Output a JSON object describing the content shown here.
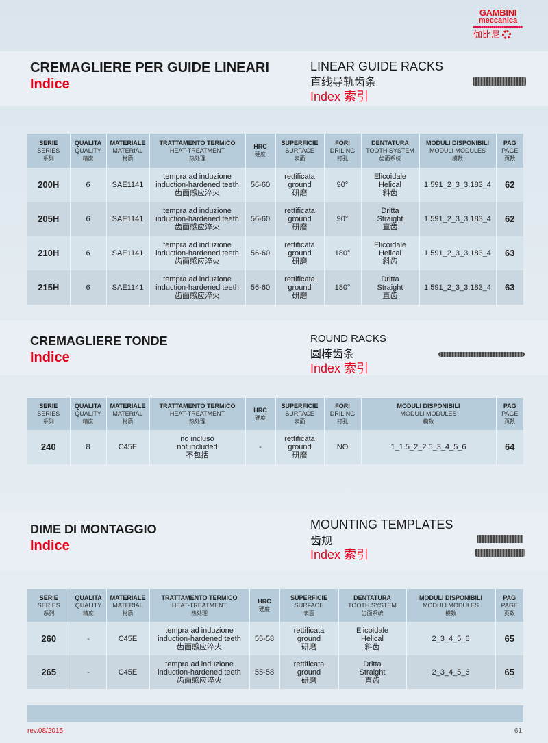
{
  "logo": {
    "line1": "GAMBINI",
    "line2": "meccanica",
    "cn": "伽比尼"
  },
  "sections": [
    {
      "title_it": "CREMAGLIERE PER GUIDE LINEARI",
      "indice": "Indice",
      "title_en": "LINEAR GUIDE RACKS",
      "title_cn": "直线导轨齿条",
      "index": "Index 索引",
      "headers": [
        [
          "SERIE",
          "SERIES",
          "系列"
        ],
        [
          "QUALITA",
          "QUALITY",
          "精度"
        ],
        [
          "MATERIALE",
          "MATERIAL",
          "材质"
        ],
        [
          "TRATTAMENTO TERMICO",
          "HEAT-TREATMENT",
          "热处理"
        ],
        [
          "HRC",
          "硬度"
        ],
        [
          "SUPERFICIE",
          "SURFACE",
          "表面"
        ],
        [
          "FORI",
          "DRILING",
          "打孔"
        ],
        [
          "DENTATURA",
          "TOOTH SYSTEM",
          "齿面系统"
        ],
        [
          "MODULI DISPONIBILI",
          "MODULI MODULES",
          "模数"
        ],
        [
          "PAG",
          "PAGE",
          "页数"
        ]
      ],
      "rows": [
        [
          [
            "200H"
          ],
          [
            "6"
          ],
          [
            "SAE1141"
          ],
          [
            "tempra ad induzione",
            "induction-hardened teeth",
            "齿面感应淬火"
          ],
          [
            "56-60"
          ],
          [
            "rettificata",
            "ground",
            "研磨"
          ],
          [
            "90°"
          ],
          [
            "Elicoidale",
            "Helical",
            "斜齿"
          ],
          [
            "1.591_2_3_3.183_4"
          ],
          [
            "62"
          ]
        ],
        [
          [
            "205H"
          ],
          [
            "6"
          ],
          [
            "SAE1141"
          ],
          [
            "tempra ad induzione",
            "induction-hardened teeth",
            "齿面感应淬火"
          ],
          [
            "56-60"
          ],
          [
            "rettificata",
            "ground",
            "研磨"
          ],
          [
            "90°"
          ],
          [
            "Dritta",
            "Straight",
            "直齿"
          ],
          [
            "1.591_2_3_3.183_4"
          ],
          [
            "62"
          ]
        ],
        [
          [
            "210H"
          ],
          [
            "6"
          ],
          [
            "SAE1141"
          ],
          [
            "tempra ad induzione",
            "induction-hardened teeth",
            "齿面感应淬火"
          ],
          [
            "56-60"
          ],
          [
            "rettificata",
            "ground",
            "研磨"
          ],
          [
            "180°"
          ],
          [
            "Elicoidale",
            "Helical",
            "斜齿"
          ],
          [
            "1.591_2_3_3.183_4"
          ],
          [
            "63"
          ]
        ],
        [
          [
            "215H"
          ],
          [
            "6"
          ],
          [
            "SAE1141"
          ],
          [
            "tempra ad induzione",
            "induction-hardened teeth",
            "齿面感应淬火"
          ],
          [
            "56-60"
          ],
          [
            "rettificata",
            "ground",
            "研磨"
          ],
          [
            "180°"
          ],
          [
            "Dritta",
            "Straight",
            "直齿"
          ],
          [
            "1.591_2_3_3.183_4"
          ],
          [
            "63"
          ]
        ]
      ]
    },
    {
      "title_it": "CREMAGLIERE TONDE",
      "indice": "Indice",
      "title_en": "ROUND RACKS",
      "title_cn": "圆棒齿条",
      "index": "Index 索引",
      "headers": [
        [
          "SERIE",
          "SERIES",
          "系列"
        ],
        [
          "QUALITA",
          "QUALITY",
          "精度"
        ],
        [
          "MATERIALE",
          "MATERIAL",
          "材质"
        ],
        [
          "TRATTAMENTO TERMICO",
          "HEAT-TREATMENT",
          "热处理"
        ],
        [
          "HRC",
          "硬度"
        ],
        [
          "SUPERFICIE",
          "SURFACE",
          "表面"
        ],
        [
          "FORI",
          "DRILING",
          "打孔"
        ],
        [
          "MODULI DISPONIBILI",
          "MODULI MODULES",
          "模数"
        ],
        [
          "PAG",
          "PAGE",
          "页数"
        ]
      ],
      "rows": [
        [
          [
            "240"
          ],
          [
            "8"
          ],
          [
            "C45E"
          ],
          [
            "no incluso",
            "not included",
            "不包括"
          ],
          [
            "-"
          ],
          [
            "rettificata",
            "ground",
            "研磨"
          ],
          [
            "NO"
          ],
          [
            "1_1.5_2_2.5_3_4_5_6"
          ],
          [
            "64"
          ]
        ]
      ]
    },
    {
      "title_it": "DIME DI MONTAGGIO",
      "indice": "Indice",
      "title_en": "MOUNTING TEMPLATES",
      "title_cn": "齿规",
      "index": "Index 索引",
      "headers": [
        [
          "SERIE",
          "SERIES",
          "系列"
        ],
        [
          "QUALITA",
          "QUALITY",
          "精度"
        ],
        [
          "MATERIALE",
          "MATERIAL",
          "材质"
        ],
        [
          "TRATTAMENTO TERMICO",
          "HEAT-TREATMENT",
          "热处理"
        ],
        [
          "HRC",
          "硬度"
        ],
        [
          "SUPERFICIE",
          "SURFACE",
          "表面"
        ],
        [
          "DENTATURA",
          "TOOTH SYSTEM",
          "齿面系统"
        ],
        [
          "MODULI DISPONIBILI",
          "MODULI MODULES",
          "模数"
        ],
        [
          "PAG",
          "PAGE",
          "页数"
        ]
      ],
      "rows": [
        [
          [
            "260"
          ],
          [
            "-"
          ],
          [
            "C45E"
          ],
          [
            "tempra ad induzione",
            "induction-hardened teeth",
            "齿面感应淬火"
          ],
          [
            "55-58"
          ],
          [
            "rettificata",
            "ground",
            "研磨"
          ],
          [
            "Elicoidale",
            "Helical",
            "斜齿"
          ],
          [
            "2_3_4_5_6"
          ],
          [
            "65"
          ]
        ],
        [
          [
            "265"
          ],
          [
            "-"
          ],
          [
            "C45E"
          ],
          [
            "tempra ad induzione",
            "induction-hardened teeth",
            "齿面感应淬火"
          ],
          [
            "55-58"
          ],
          [
            "rettificata",
            "ground",
            "研磨"
          ],
          [
            "Dritta",
            "Straight",
            "直齿"
          ],
          [
            "2_3_4_5_6"
          ],
          [
            "65"
          ]
        ]
      ]
    }
  ],
  "footer": {
    "revision": "rev.08/2015",
    "page": "61"
  },
  "colors": {
    "accent": "#e3001b",
    "header_bg": "#b6ccda",
    "row_a": "#d6e3eb",
    "row_b": "#cad7e0"
  }
}
